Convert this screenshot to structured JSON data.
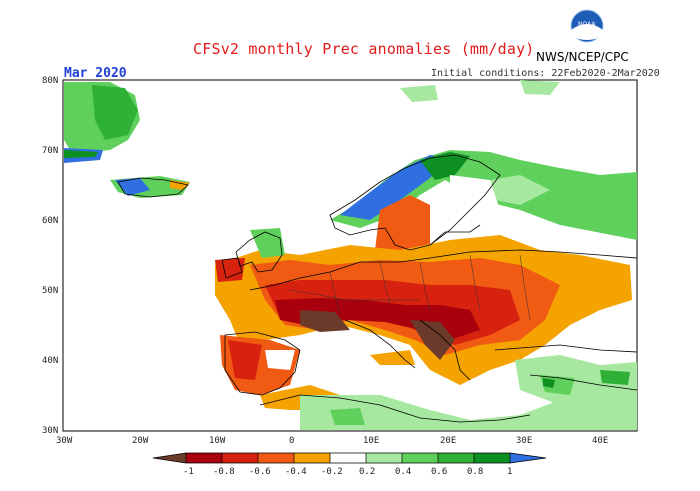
{
  "header": {
    "title": "CFSv2 monthly Prec anomalies (mm/day)",
    "center": "NWS/NCEP/CPC",
    "month": "Mar 2020",
    "initial_conditions": "Initial conditions: 22Feb2020-2Mar2020",
    "logo_text": "NOAA"
  },
  "axes": {
    "lat_labels": [
      "80N",
      "70N",
      "60N",
      "50N",
      "40N",
      "30N"
    ],
    "lon_labels": [
      "30W",
      "20W",
      "10W",
      "0",
      "10E",
      "20E",
      "30E",
      "40E"
    ]
  },
  "colorbar": {
    "labels": [
      "-1",
      "-0.8",
      "-0.6",
      "-0.4",
      "-0.2",
      "0.2",
      "0.4",
      "0.6",
      "0.8",
      "1"
    ],
    "colors": [
      "#6b3a2a",
      "#a8000c",
      "#d7220f",
      "#f05a12",
      "#f4a300",
      "#ffffff",
      "#a6e8a0",
      "#5fd05c",
      "#2fb036",
      "#0d8f22",
      "#2f6fe0"
    ]
  },
  "map_regions": [
    {
      "name": "greenland-positive",
      "color": "#5fd05c"
    },
    {
      "name": "scandinavia-coast-positive",
      "color": "#2f6fe0"
    },
    {
      "name": "central-europe-negative",
      "color": "#d7220f"
    },
    {
      "name": "balkans-strong-negative",
      "color": "#6b3a2a"
    }
  ]
}
